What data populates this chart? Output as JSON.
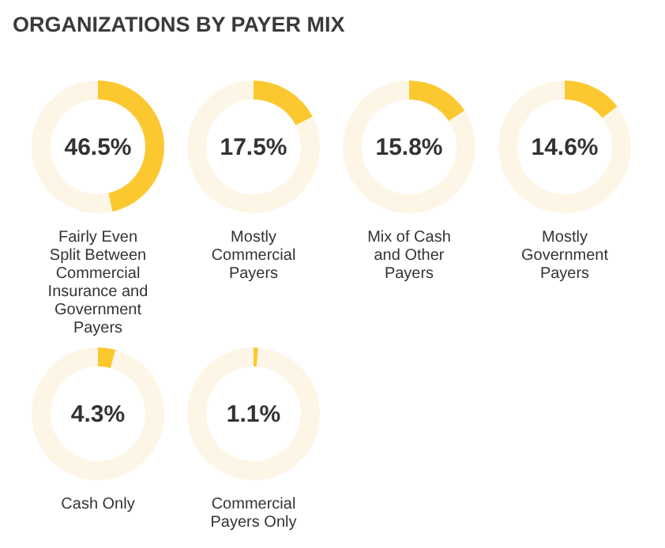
{
  "chart_data": [
    {
      "type": "other",
      "title": "ORGANIZATIONS BY PAYER MIX"
    },
    {
      "type": "donut",
      "title": "Fairly Even Split Between Commercial Insurance and Government Payers",
      "values": [
        46.5,
        53.5
      ],
      "colors": [
        "#fcc830",
        "#fdf6e6"
      ],
      "annotations": [
        "46.5%"
      ]
    },
    {
      "type": "donut",
      "title": "Mostly Commercial Payers",
      "values": [
        17.5,
        82.5
      ],
      "colors": [
        "#fcc830",
        "#fdf6e6"
      ],
      "annotations": [
        "17.5%"
      ]
    },
    {
      "type": "donut",
      "title": "Mix of Cash and Other Payers",
      "values": [
        15.8,
        84.2
      ],
      "colors": [
        "#fcc830",
        "#fdf6e6"
      ],
      "annotations": [
        "15.8%"
      ]
    },
    {
      "type": "donut",
      "title": "Mostly Government Payers",
      "values": [
        14.6,
        85.4
      ],
      "colors": [
        "#fcc830",
        "#fdf6e6"
      ],
      "annotations": [
        "14.6%"
      ]
    },
    {
      "type": "donut",
      "title": "Cash Only",
      "values": [
        4.3,
        95.7
      ],
      "colors": [
        "#fcc830",
        "#fdf6e6"
      ],
      "annotations": [
        "4.3%"
      ]
    },
    {
      "type": "donut",
      "title": "Commercial Payers Only",
      "values": [
        1.1,
        98.9
      ],
      "colors": [
        "#fcc830",
        "#fdf6e6"
      ],
      "annotations": [
        "1.1%"
      ]
    }
  ]
}
